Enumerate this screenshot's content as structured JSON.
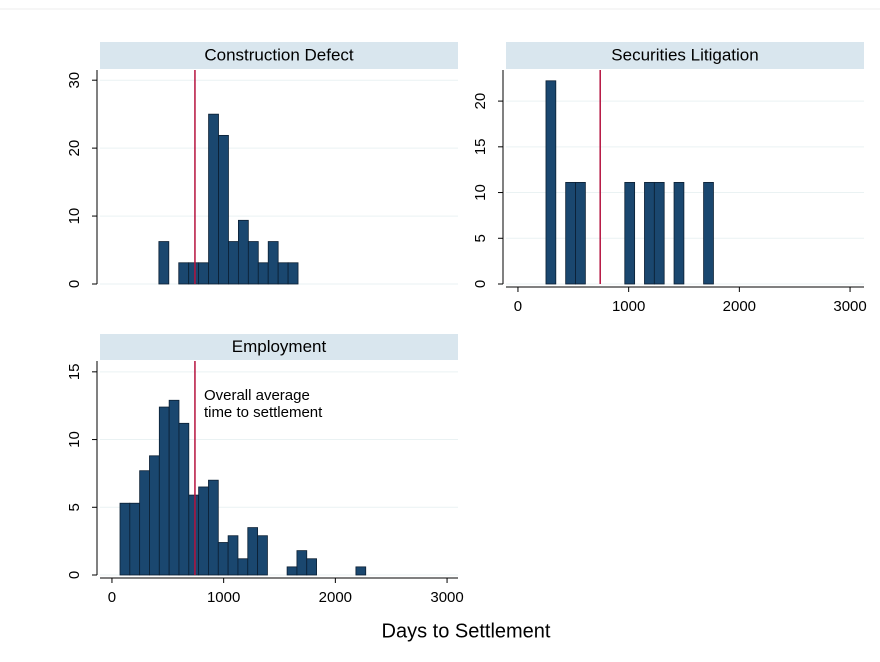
{
  "xlabel": "Days to Settlement",
  "chart_data": [
    {
      "type": "histogram",
      "title": "Construction Defect",
      "bins": [
        420,
        509,
        598,
        687,
        776,
        865,
        954,
        1043,
        1132,
        1221,
        1310,
        1399,
        1488,
        1577,
        1666
      ],
      "counts": [
        6.25,
        0,
        3.125,
        3.125,
        3.125,
        25,
        21.875,
        6.25,
        9.375,
        6.25,
        3.125,
        6.25,
        3.125,
        3.125
      ],
      "color": "#1a476f",
      "xlim": [
        -107,
        3098
      ],
      "ylim": [
        0,
        31.5
      ],
      "yticks": [
        0,
        10,
        20,
        30
      ],
      "grid": true,
      "refline": {
        "value": 743,
        "color": "#b5123e"
      }
    },
    {
      "type": "histogram",
      "title": "Securities Litigation",
      "bins": [
        253,
        342,
        431,
        520,
        609,
        698,
        787,
        876,
        965,
        1054,
        1143,
        1232,
        1321,
        1410,
        1499,
        1588,
        1677,
        1766
      ],
      "counts": [
        22.22,
        0,
        11.11,
        11.11,
        0,
        0,
        0,
        0,
        11.11,
        0,
        11.11,
        11.11,
        0,
        11.11,
        0,
        0,
        11.11
      ],
      "color": "#1a476f",
      "xlim": [
        -108,
        3126
      ],
      "ylim": [
        0,
        23.4
      ],
      "yticks": [
        0,
        5,
        10,
        15,
        20
      ],
      "xticks": [
        0,
        1000,
        2000,
        3000
      ],
      "grid": true,
      "refline": {
        "value": 743,
        "color": "#b5123e"
      }
    },
    {
      "type": "histogram",
      "title": "Employment",
      "bins": [
        72,
        160,
        248,
        336,
        424,
        512,
        600,
        688,
        776,
        864,
        952,
        1040,
        1128,
        1216,
        1304,
        1392,
        1480,
        1568,
        1656,
        1744,
        1832,
        1920,
        2008,
        2096,
        2184,
        2272
      ],
      "counts": [
        5.3,
        5.3,
        7.7,
        8.8,
        12.4,
        12.9,
        11.2,
        5.9,
        6.5,
        7.0,
        2.4,
        2.9,
        1.2,
        3.5,
        2.9,
        0,
        0,
        0.6,
        1.8,
        1.2,
        0,
        0,
        0,
        0,
        0.6
      ],
      "color": "#1a476f",
      "xlim": [
        -107,
        3098
      ],
      "ylim": [
        0,
        15.8
      ],
      "yticks": [
        0,
        5,
        10,
        15
      ],
      "xticks": [
        0,
        1000,
        2000,
        3000
      ],
      "grid": true,
      "refline": {
        "value": 743,
        "color": "#b5123e"
      },
      "annotation": [
        "Overall average",
        "time to settlement"
      ]
    }
  ]
}
